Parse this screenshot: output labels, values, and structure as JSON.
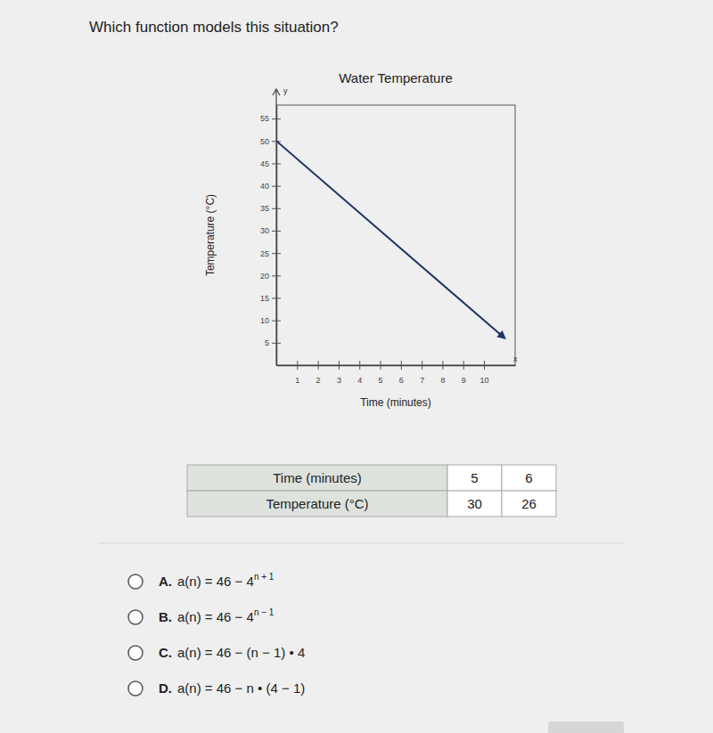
{
  "question": "Which function models this situation?",
  "chart_data": {
    "type": "line",
    "title": "Water Temperature",
    "x_label": "Time (minutes)",
    "y_label": "Temperature (°C)",
    "annotations": [
      "y",
      "x"
    ],
    "x": [
      0,
      11
    ],
    "values": [
      50,
      6
    ],
    "color": "#1f3566",
    "xlim": [
      0,
      11.5
    ],
    "ylim": [
      0,
      58
    ],
    "xticks": [
      1,
      2,
      3,
      4,
      5,
      6,
      7,
      8,
      9,
      10
    ],
    "yticks": [
      5,
      10,
      15,
      20,
      25,
      30,
      35,
      40,
      45,
      50,
      55
    ],
    "grid": false
  },
  "table": {
    "rows": [
      [
        "Time (minutes)",
        "5",
        "6"
      ],
      [
        "Temperature (°C)",
        "30",
        "26"
      ]
    ]
  },
  "options": [
    {
      "letter": "A.",
      "expression": "a(n) = 46 − 4",
      "exponent": "n + 1"
    },
    {
      "letter": "B.",
      "expression": "a(n) = 46 − 4",
      "exponent": "n − 1"
    },
    {
      "letter": "C.",
      "expression": "a(n) = 46 − (n − 1) • 4",
      "exponent": null
    },
    {
      "letter": "D.",
      "expression": "a(n) = 46 − n • (4 − 1)",
      "exponent": null
    }
  ]
}
